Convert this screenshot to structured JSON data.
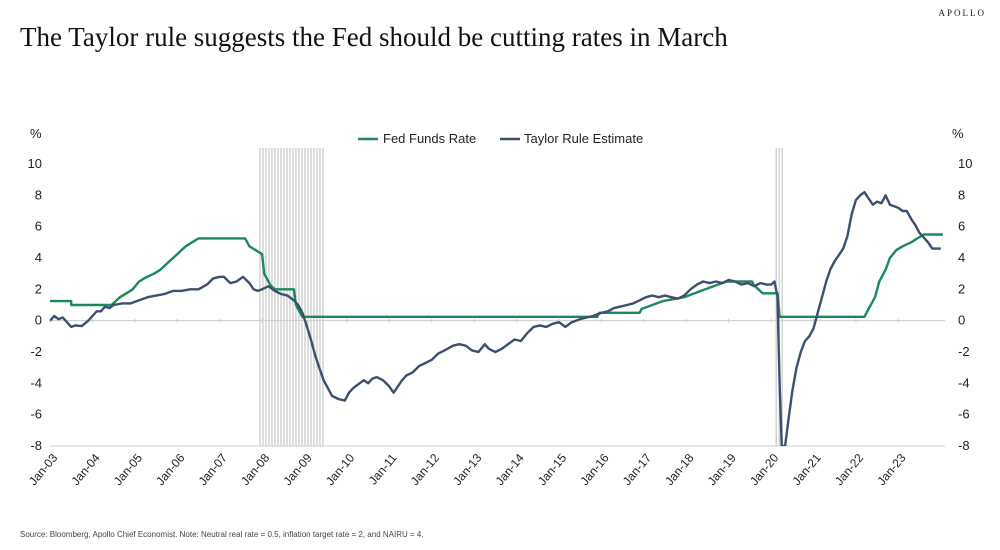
{
  "brand": "APOLLO",
  "title": "The Taylor rule suggests the Fed should be cutting rates in March",
  "source": "Source: Bloomberg, Apollo Chief Economist. Note: Neutral real rate = 0.5, inflation target rate = 2, and NAIRU = 4.",
  "colors": {
    "fed": "#1a8a5a",
    "taylor": "#3d4f70",
    "recession": "#c8c8c8",
    "axis": "#cccccc"
  },
  "chart_data": {
    "type": "line",
    "title": "The Taylor rule suggests the Fed should be cutting rates in March",
    "ylabel_left": "%",
    "ylabel_right": "%",
    "ylim": [
      -8,
      10
    ],
    "yticks": [
      -8,
      -6,
      -4,
      -2,
      0,
      2,
      4,
      6,
      8,
      10
    ],
    "xlim": [
      2003.0,
      2024.1
    ],
    "xticks": [
      {
        "x": 2003,
        "label": "Jan-03"
      },
      {
        "x": 2004,
        "label": "Jan-04"
      },
      {
        "x": 2005,
        "label": "Jan-05"
      },
      {
        "x": 2006,
        "label": "Jan-06"
      },
      {
        "x": 2007,
        "label": "Jan-07"
      },
      {
        "x": 2008,
        "label": "Jan-08"
      },
      {
        "x": 2009,
        "label": "Jan-09"
      },
      {
        "x": 2010,
        "label": "Jan-10"
      },
      {
        "x": 2011,
        "label": "Jan-11"
      },
      {
        "x": 2012,
        "label": "Jan-12"
      },
      {
        "x": 2013,
        "label": "Jan-13"
      },
      {
        "x": 2014,
        "label": "Jan-14"
      },
      {
        "x": 2015,
        "label": "Jan-15"
      },
      {
        "x": 2016,
        "label": "Jan-16"
      },
      {
        "x": 2017,
        "label": "Jan-17"
      },
      {
        "x": 2018,
        "label": "Jan-18"
      },
      {
        "x": 2019,
        "label": "Jan-19"
      },
      {
        "x": 2020,
        "label": "Jan-20"
      },
      {
        "x": 2021,
        "label": "Jan-21"
      },
      {
        "x": 2022,
        "label": "Jan-22"
      },
      {
        "x": 2023,
        "label": "Jan-23"
      }
    ],
    "recessions": [
      [
        2007.95,
        2009.5
      ],
      [
        2020.12,
        2020.33
      ]
    ],
    "legend_position": "top-center",
    "series": [
      {
        "name": "Fed Funds Rate",
        "color_key": "fed",
        "points": [
          [
            2003.0,
            1.25
          ],
          [
            2003.5,
            1.25
          ],
          [
            2003.5,
            1.0
          ],
          [
            2004.45,
            1.0
          ],
          [
            2004.55,
            1.25
          ],
          [
            2004.65,
            1.5
          ],
          [
            2004.8,
            1.75
          ],
          [
            2004.95,
            2.0
          ],
          [
            2005.1,
            2.5
          ],
          [
            2005.25,
            2.75
          ],
          [
            2005.45,
            3.0
          ],
          [
            2005.6,
            3.25
          ],
          [
            2005.8,
            3.75
          ],
          [
            2006.0,
            4.25
          ],
          [
            2006.2,
            4.75
          ],
          [
            2006.35,
            5.0
          ],
          [
            2006.5,
            5.25
          ],
          [
            2007.6,
            5.25
          ],
          [
            2007.7,
            4.75
          ],
          [
            2007.85,
            4.5
          ],
          [
            2008.0,
            4.25
          ],
          [
            2008.05,
            3.0
          ],
          [
            2008.2,
            2.25
          ],
          [
            2008.3,
            2.0
          ],
          [
            2008.75,
            2.0
          ],
          [
            2008.8,
            1.0
          ],
          [
            2008.95,
            0.25
          ],
          [
            2015.9,
            0.25
          ],
          [
            2015.95,
            0.5
          ],
          [
            2016.9,
            0.5
          ],
          [
            2016.95,
            0.75
          ],
          [
            2017.2,
            1.0
          ],
          [
            2017.45,
            1.25
          ],
          [
            2017.95,
            1.5
          ],
          [
            2018.2,
            1.75
          ],
          [
            2018.45,
            2.0
          ],
          [
            2018.7,
            2.25
          ],
          [
            2018.95,
            2.5
          ],
          [
            2019.55,
            2.5
          ],
          [
            2019.6,
            2.25
          ],
          [
            2019.7,
            2.0
          ],
          [
            2019.8,
            1.75
          ],
          [
            2020.15,
            1.75
          ],
          [
            2020.2,
            0.25
          ],
          [
            2022.2,
            0.25
          ],
          [
            2022.3,
            0.75
          ],
          [
            2022.45,
            1.5
          ],
          [
            2022.55,
            2.5
          ],
          [
            2022.7,
            3.25
          ],
          [
            2022.8,
            4.0
          ],
          [
            2022.95,
            4.5
          ],
          [
            2023.1,
            4.75
          ],
          [
            2023.3,
            5.0
          ],
          [
            2023.45,
            5.25
          ],
          [
            2023.6,
            5.5
          ],
          [
            2024.05,
            5.5
          ]
        ]
      },
      {
        "name": "Taylor Rule Estimate",
        "color_key": "taylor",
        "points": [
          [
            2003.0,
            0.0
          ],
          [
            2003.1,
            0.3
          ],
          [
            2003.2,
            0.1
          ],
          [
            2003.3,
            0.2
          ],
          [
            2003.4,
            -0.1
          ],
          [
            2003.5,
            -0.4
          ],
          [
            2003.6,
            -0.3
          ],
          [
            2003.75,
            -0.35
          ],
          [
            2003.9,
            0.0
          ],
          [
            2004.0,
            0.3
          ],
          [
            2004.1,
            0.6
          ],
          [
            2004.2,
            0.6
          ],
          [
            2004.3,
            0.9
          ],
          [
            2004.4,
            0.8
          ],
          [
            2004.5,
            1.0
          ],
          [
            2004.7,
            1.1
          ],
          [
            2004.9,
            1.1
          ],
          [
            2005.1,
            1.3
          ],
          [
            2005.3,
            1.5
          ],
          [
            2005.5,
            1.6
          ],
          [
            2005.7,
            1.7
          ],
          [
            2005.9,
            1.9
          ],
          [
            2006.1,
            1.9
          ],
          [
            2006.3,
            2.0
          ],
          [
            2006.5,
            2.0
          ],
          [
            2006.7,
            2.3
          ],
          [
            2006.85,
            2.7
          ],
          [
            2007.0,
            2.8
          ],
          [
            2007.1,
            2.8
          ],
          [
            2007.25,
            2.4
          ],
          [
            2007.4,
            2.5
          ],
          [
            2007.55,
            2.8
          ],
          [
            2007.7,
            2.4
          ],
          [
            2007.8,
            2.0
          ],
          [
            2007.9,
            1.9
          ],
          [
            2008.0,
            2.0
          ],
          [
            2008.15,
            2.2
          ],
          [
            2008.3,
            1.9
          ],
          [
            2008.45,
            1.7
          ],
          [
            2008.6,
            1.6
          ],
          [
            2008.75,
            1.3
          ],
          [
            2008.85,
            1.0
          ],
          [
            2008.95,
            0.5
          ],
          [
            2009.05,
            -0.3
          ],
          [
            2009.15,
            -1.2
          ],
          [
            2009.25,
            -2.2
          ],
          [
            2009.35,
            -3.0
          ],
          [
            2009.45,
            -3.8
          ],
          [
            2009.55,
            -4.3
          ],
          [
            2009.65,
            -4.8
          ],
          [
            2009.8,
            -5.0
          ],
          [
            2009.95,
            -5.1
          ],
          [
            2010.05,
            -4.6
          ],
          [
            2010.15,
            -4.3
          ],
          [
            2010.3,
            -4.0
          ],
          [
            2010.4,
            -3.8
          ],
          [
            2010.5,
            -4.0
          ],
          [
            2010.6,
            -3.7
          ],
          [
            2010.7,
            -3.6
          ],
          [
            2010.85,
            -3.8
          ],
          [
            2011.0,
            -4.2
          ],
          [
            2011.1,
            -4.6
          ],
          [
            2011.2,
            -4.2
          ],
          [
            2011.3,
            -3.8
          ],
          [
            2011.4,
            -3.5
          ],
          [
            2011.55,
            -3.3
          ],
          [
            2011.7,
            -2.9
          ],
          [
            2011.85,
            -2.7
          ],
          [
            2012.0,
            -2.5
          ],
          [
            2012.15,
            -2.1
          ],
          [
            2012.3,
            -1.9
          ],
          [
            2012.5,
            -1.6
          ],
          [
            2012.65,
            -1.5
          ],
          [
            2012.8,
            -1.6
          ],
          [
            2012.95,
            -1.9
          ],
          [
            2013.1,
            -2.0
          ],
          [
            2013.25,
            -1.5
          ],
          [
            2013.35,
            -1.8
          ],
          [
            2013.5,
            -2.0
          ],
          [
            2013.65,
            -1.8
          ],
          [
            2013.8,
            -1.5
          ],
          [
            2013.95,
            -1.2
          ],
          [
            2014.1,
            -1.3
          ],
          [
            2014.25,
            -0.8
          ],
          [
            2014.4,
            -0.4
          ],
          [
            2014.55,
            -0.3
          ],
          [
            2014.7,
            -0.4
          ],
          [
            2014.85,
            -0.2
          ],
          [
            2015.0,
            -0.1
          ],
          [
            2015.15,
            -0.4
          ],
          [
            2015.3,
            -0.1
          ],
          [
            2015.5,
            0.1
          ],
          [
            2015.65,
            0.2
          ],
          [
            2015.8,
            0.3
          ],
          [
            2016.0,
            0.5
          ],
          [
            2016.15,
            0.6
          ],
          [
            2016.3,
            0.8
          ],
          [
            2016.45,
            0.9
          ],
          [
            2016.6,
            1.0
          ],
          [
            2016.75,
            1.1
          ],
          [
            2016.9,
            1.3
          ],
          [
            2017.05,
            1.5
          ],
          [
            2017.2,
            1.6
          ],
          [
            2017.35,
            1.5
          ],
          [
            2017.5,
            1.6
          ],
          [
            2017.65,
            1.5
          ],
          [
            2017.8,
            1.4
          ],
          [
            2017.95,
            1.6
          ],
          [
            2018.1,
            2.0
          ],
          [
            2018.25,
            2.3
          ],
          [
            2018.4,
            2.5
          ],
          [
            2018.55,
            2.4
          ],
          [
            2018.7,
            2.5
          ],
          [
            2018.85,
            2.4
          ],
          [
            2019.0,
            2.6
          ],
          [
            2019.15,
            2.5
          ],
          [
            2019.3,
            2.3
          ],
          [
            2019.45,
            2.4
          ],
          [
            2019.6,
            2.2
          ],
          [
            2019.75,
            2.4
          ],
          [
            2019.9,
            2.3
          ],
          [
            2020.0,
            2.3
          ],
          [
            2020.08,
            2.5
          ],
          [
            2020.15,
            1.5
          ],
          [
            2020.2,
            -4.0
          ],
          [
            2020.25,
            -8.0
          ],
          [
            2020.33,
            -8.0
          ],
          [
            2020.4,
            -6.5
          ],
          [
            2020.5,
            -4.5
          ],
          [
            2020.6,
            -3.0
          ],
          [
            2020.7,
            -2.0
          ],
          [
            2020.8,
            -1.3
          ],
          [
            2020.9,
            -1.0
          ],
          [
            2021.0,
            -0.5
          ],
          [
            2021.1,
            0.5
          ],
          [
            2021.2,
            1.5
          ],
          [
            2021.3,
            2.5
          ],
          [
            2021.4,
            3.3
          ],
          [
            2021.5,
            3.8
          ],
          [
            2021.6,
            4.2
          ],
          [
            2021.7,
            4.6
          ],
          [
            2021.8,
            5.4
          ],
          [
            2021.9,
            6.8
          ],
          [
            2022.0,
            7.7
          ],
          [
            2022.1,
            8.0
          ],
          [
            2022.2,
            8.2
          ],
          [
            2022.3,
            7.8
          ],
          [
            2022.4,
            7.4
          ],
          [
            2022.5,
            7.6
          ],
          [
            2022.6,
            7.5
          ],
          [
            2022.7,
            8.0
          ],
          [
            2022.8,
            7.4
          ],
          [
            2022.9,
            7.3
          ],
          [
            2023.0,
            7.2
          ],
          [
            2023.1,
            7.0
          ],
          [
            2023.2,
            7.0
          ],
          [
            2023.3,
            6.5
          ],
          [
            2023.4,
            6.1
          ],
          [
            2023.5,
            5.6
          ],
          [
            2023.6,
            5.3
          ],
          [
            2023.7,
            5.0
          ],
          [
            2023.8,
            4.6
          ],
          [
            2024.0,
            4.6
          ]
        ]
      }
    ]
  }
}
